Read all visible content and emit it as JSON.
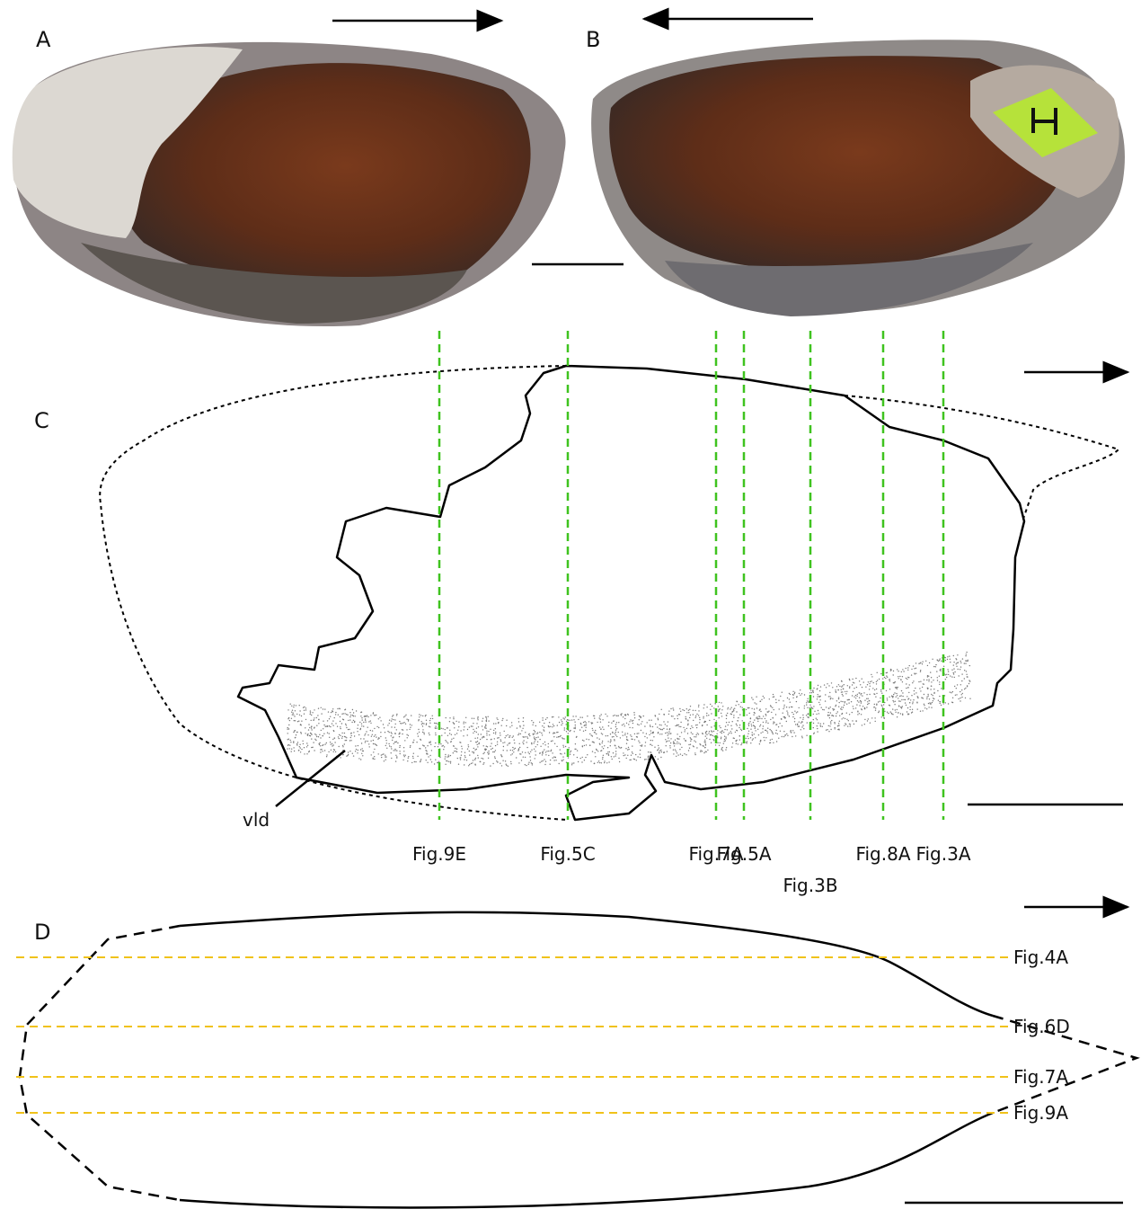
{
  "panels": {
    "a": {
      "label": "A"
    },
    "b": {
      "label": "B"
    },
    "c": {
      "label": "C",
      "sections": [
        "Fig.9E",
        "Fig.5C",
        "Fig.7A",
        "Fig.5A",
        "Fig.3B",
        "Fig.8A",
        "Fig.3A"
      ],
      "annotation": "vld"
    },
    "d": {
      "label": "D",
      "sections": [
        "Fig.4A",
        "Fig.6D",
        "Fig.7A",
        "Fig.9A"
      ]
    }
  }
}
